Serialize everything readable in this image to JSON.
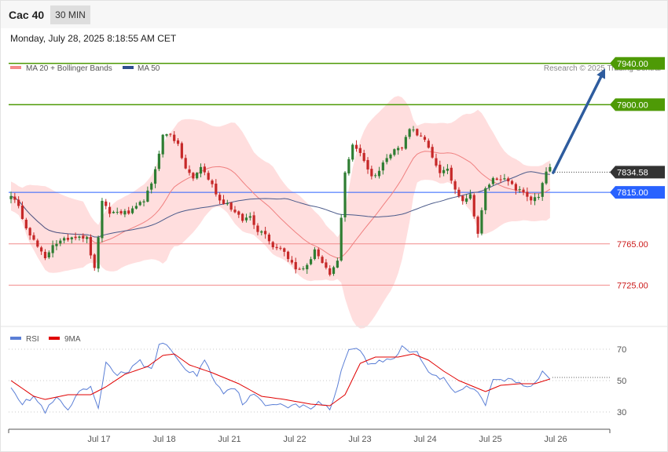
{
  "header": {
    "instrument": "Cac 40",
    "timeframe": "30 MIN",
    "datetime": "Monday, July 28, 2025 8:18:55 AM CET"
  },
  "legend": {
    "ma20_bb": "MA 20 + Bollinger Bands",
    "ma50": "MA 50",
    "rsi": "RSI",
    "ma9": "9MA"
  },
  "copyright": "Research © 2025 Trading Central",
  "colors": {
    "bullish": "#2e7d32",
    "bearish": "#c62828",
    "bands": "#ffdede",
    "ma20": "#f08080",
    "ma50": "#4a5a8a",
    "resistance": "#4e9a06",
    "pivot": "#2962ff",
    "support": "#f28b8b",
    "arrow": "#2e5c9e",
    "rsi": "#5b7fd6",
    "rsi_ma": "#e00000"
  },
  "chart_data": [
    {
      "type": "candlestick",
      "ylim": [
        7688,
        7952
      ],
      "x_labels": [
        "Jul 17",
        "Jul 18",
        "Jul 21",
        "Jul 22",
        "Jul 23",
        "Jul 24",
        "Jul 25",
        "Jul 26"
      ],
      "levels": [
        {
          "label": "7940.00",
          "value": 7940,
          "kind": "resistance"
        },
        {
          "label": "7900.00",
          "value": 7900,
          "kind": "resistance"
        },
        {
          "label": "7834.58",
          "value": 7834.58,
          "kind": "current"
        },
        {
          "label": "7815.00",
          "value": 7815,
          "kind": "pivot"
        },
        {
          "label": "7765.00",
          "value": 7765,
          "kind": "support"
        },
        {
          "label": "7725.00",
          "value": 7725,
          "kind": "support"
        }
      ],
      "forecast_arrow": {
        "from": 7834,
        "to": 7935
      },
      "keypoints": [
        [
          0,
          7813
        ],
        [
          2,
          7800
        ],
        [
          4,
          7782
        ],
        [
          6,
          7768
        ],
        [
          9,
          7750
        ],
        [
          11,
          7765
        ],
        [
          13,
          7767
        ],
        [
          16,
          7772
        ],
        [
          18,
          7773
        ],
        [
          20,
          7770
        ],
        [
          22,
          7740
        ],
        [
          24,
          7805
        ],
        [
          26,
          7795
        ],
        [
          28,
          7796
        ],
        [
          31,
          7795
        ],
        [
          33,
          7800
        ],
        [
          35,
          7808
        ],
        [
          37,
          7822
        ],
        [
          40,
          7870
        ],
        [
          42,
          7872
        ],
        [
          44,
          7860
        ],
        [
          46,
          7838
        ],
        [
          48,
          7828
        ],
        [
          50,
          7840
        ],
        [
          53,
          7822
        ],
        [
          55,
          7807
        ],
        [
          57,
          7804
        ],
        [
          59,
          7795
        ],
        [
          61,
          7788
        ],
        [
          63,
          7792
        ],
        [
          65,
          7778
        ],
        [
          67,
          7776
        ],
        [
          69,
          7762
        ],
        [
          71,
          7762
        ],
        [
          73,
          7752
        ],
        [
          75,
          7740
        ],
        [
          78,
          7743
        ],
        [
          80,
          7760
        ],
        [
          82,
          7745
        ],
        [
          84,
          7735
        ],
        [
          86,
          7748
        ],
        [
          88,
          7835
        ],
        [
          90,
          7860
        ],
        [
          92,
          7854
        ],
        [
          95,
          7830
        ],
        [
          97,
          7836
        ],
        [
          99,
          7850
        ],
        [
          101,
          7857
        ],
        [
          103,
          7858
        ],
        [
          105,
          7878
        ],
        [
          107,
          7872
        ],
        [
          109,
          7865
        ],
        [
          111,
          7848
        ],
        [
          113,
          7835
        ],
        [
          115,
          7836
        ],
        [
          117,
          7818
        ],
        [
          119,
          7808
        ],
        [
          121,
          7812
        ],
        [
          123,
          7775
        ],
        [
          125,
          7818
        ],
        [
          127,
          7828
        ],
        [
          129,
          7829
        ],
        [
          131,
          7825
        ],
        [
          133,
          7818
        ],
        [
          135,
          7815
        ],
        [
          137,
          7808
        ],
        [
          139,
          7810
        ],
        [
          141,
          7835
        ],
        [
          142,
          7839
        ]
      ]
    },
    {
      "type": "line",
      "title": "RSI",
      "ylim": [
        20,
        80
      ],
      "y_ticks": [
        "70",
        "50",
        "30"
      ],
      "series": [
        {
          "name": "RSI",
          "keypoints": [
            [
              0,
              47
            ],
            [
              3,
              35
            ],
            [
              6,
              40
            ],
            [
              9,
              30
            ],
            [
              12,
              39
            ],
            [
              15,
              31
            ],
            [
              18,
              42
            ],
            [
              21,
              46
            ],
            [
              23,
              31
            ],
            [
              25,
              62
            ],
            [
              28,
              54
            ],
            [
              31,
              56
            ],
            [
              34,
              62
            ],
            [
              37,
              57
            ],
            [
              39,
              72
            ],
            [
              41,
              73
            ],
            [
              44,
              64
            ],
            [
              46,
              56
            ],
            [
              49,
              54
            ],
            [
              51,
              64
            ],
            [
              53,
              52
            ],
            [
              56,
              43
            ],
            [
              59,
              46
            ],
            [
              61,
              36
            ],
            [
              64,
              41
            ],
            [
              67,
              34
            ],
            [
              70,
              36
            ],
            [
              73,
              34
            ],
            [
              76,
              34
            ],
            [
              79,
              32
            ],
            [
              81,
              37
            ],
            [
              84,
              31
            ],
            [
              87,
              56
            ],
            [
              89,
              70
            ],
            [
              91,
              72
            ],
            [
              94,
              61
            ],
            [
              97,
              62
            ],
            [
              99,
              63
            ],
            [
              101,
              64
            ],
            [
              103,
              72
            ],
            [
              105,
              69
            ],
            [
              107,
              68
            ],
            [
              110,
              56
            ],
            [
              112,
              52
            ],
            [
              114,
              52
            ],
            [
              117,
              43
            ],
            [
              120,
              46
            ],
            [
              122,
              45
            ],
            [
              125,
              34
            ],
            [
              127,
              51
            ],
            [
              129,
              50
            ],
            [
              131,
              51
            ],
            [
              134,
              48
            ],
            [
              137,
              46
            ],
            [
              140,
              56
            ],
            [
              142,
              52
            ]
          ]
        },
        {
          "name": "9MA",
          "keypoints": [
            [
              0,
              50
            ],
            [
              6,
              40
            ],
            [
              9,
              38
            ],
            [
              15,
              41
            ],
            [
              21,
              41
            ],
            [
              25,
              46
            ],
            [
              30,
              54
            ],
            [
              36,
              59
            ],
            [
              40,
              66
            ],
            [
              43,
              67
            ],
            [
              47,
              60
            ],
            [
              53,
              55
            ],
            [
              60,
              48
            ],
            [
              66,
              40
            ],
            [
              72,
              38
            ],
            [
              79,
              35
            ],
            [
              84,
              34
            ],
            [
              88,
              41
            ],
            [
              92,
              61
            ],
            [
              96,
              65
            ],
            [
              102,
              65
            ],
            [
              106,
              67
            ],
            [
              110,
              63
            ],
            [
              114,
              56
            ],
            [
              118,
              50
            ],
            [
              122,
              46
            ],
            [
              125,
              43
            ],
            [
              129,
              47
            ],
            [
              134,
              48
            ],
            [
              138,
              48
            ],
            [
              142,
              51
            ]
          ]
        }
      ]
    }
  ]
}
